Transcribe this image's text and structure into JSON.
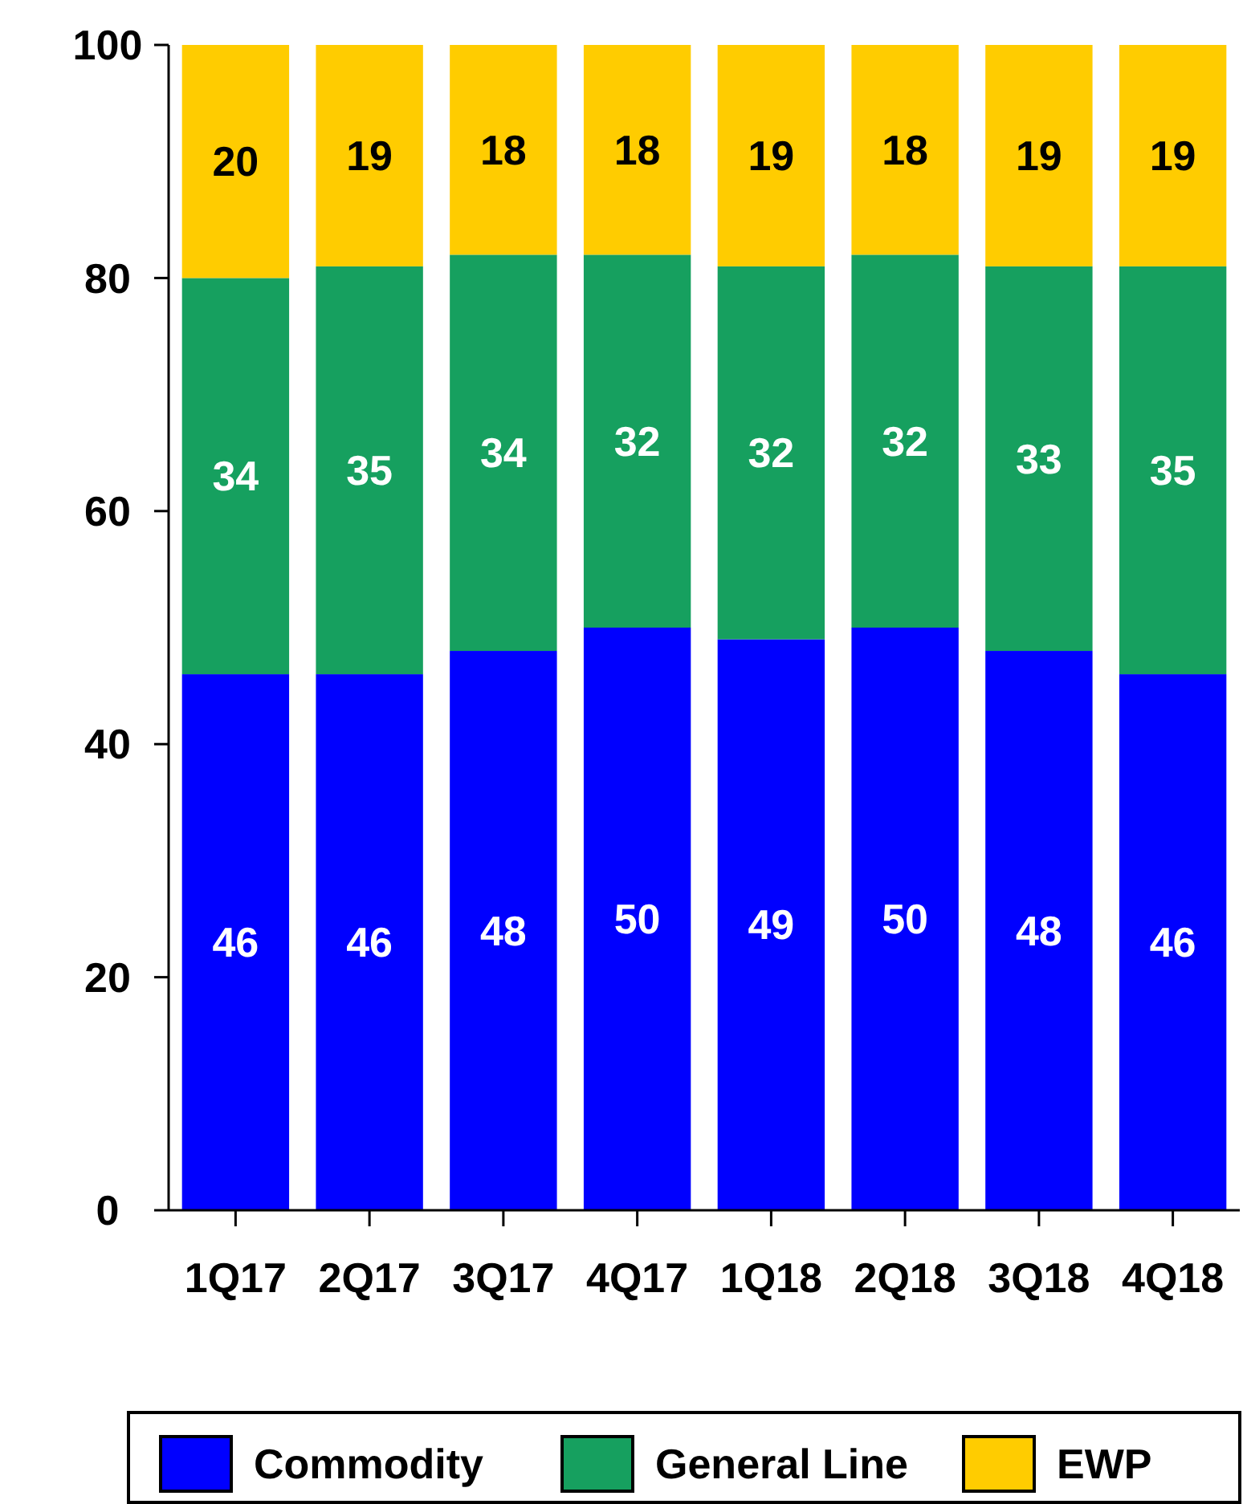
{
  "chart_data": {
    "type": "bar",
    "stacked": true,
    "categories": [
      "1Q17",
      "2Q17",
      "3Q17",
      "4Q17",
      "1Q18",
      "2Q18",
      "3Q18",
      "4Q18"
    ],
    "series": [
      {
        "name": "Commodity",
        "color": "#0000ff",
        "values": [
          46,
          46,
          48,
          50,
          49,
          50,
          48,
          46
        ]
      },
      {
        "name": "General Line",
        "color": "#16a05f",
        "values": [
          34,
          35,
          34,
          32,
          32,
          32,
          33,
          35
        ]
      },
      {
        "name": "EWP",
        "color": "#ffcc00",
        "values": [
          20,
          19,
          18,
          18,
          19,
          18,
          19,
          19
        ]
      }
    ],
    "ylim": [
      0,
      100
    ],
    "yticks": [
      0,
      20,
      40,
      60,
      80,
      100
    ],
    "data_labels": true,
    "legend": "bottom",
    "grid": false
  }
}
